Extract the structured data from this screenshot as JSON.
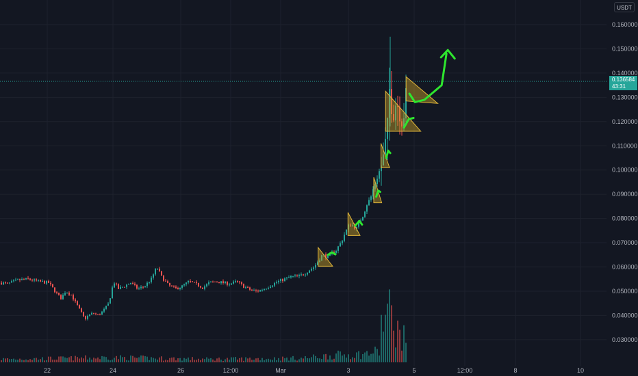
{
  "chart_data": {
    "type": "candlestick",
    "quote_unit": "USDT",
    "y_axis": {
      "range": [
        0.0195,
        0.1665
      ],
      "ticks": [
        "0.160000",
        "0.150000",
        "0.140000",
        "0.130000",
        "0.120000",
        "0.110000",
        "0.100000",
        "0.090000",
        "0.080000",
        "0.070000",
        "0.060000",
        "0.050000",
        "0.040000",
        "0.030000"
      ]
    },
    "x_axis": {
      "ticks": [
        "22",
        "24",
        "26",
        "12:00",
        "Mar",
        "3",
        "5",
        "12:00",
        "8",
        "10"
      ]
    },
    "last_price": {
      "price": "0.136584",
      "countdown": "43:31",
      "value": 0.136584
    },
    "price_path": [
      [
        0,
        0.0535
      ],
      [
        10,
        0.053
      ],
      [
        25,
        0.0545
      ],
      [
        40,
        0.055
      ],
      [
        55,
        0.054
      ],
      [
        70,
        0.0535
      ],
      [
        82,
        0.049
      ],
      [
        88,
        0.047
      ],
      [
        95,
        0.05
      ],
      [
        103,
        0.0485
      ],
      [
        112,
        0.044
      ],
      [
        118,
        0.041
      ],
      [
        123,
        0.0385
      ],
      [
        128,
        0.04
      ],
      [
        135,
        0.041
      ],
      [
        143,
        0.04
      ],
      [
        150,
        0.042
      ],
      [
        158,
        0.045
      ],
      [
        165,
        0.054
      ],
      [
        172,
        0.051
      ],
      [
        180,
        0.052
      ],
      [
        190,
        0.0535
      ],
      [
        200,
        0.051
      ],
      [
        210,
        0.052
      ],
      [
        220,
        0.055
      ],
      [
        228,
        0.06
      ],
      [
        235,
        0.056
      ],
      [
        245,
        0.0525
      ],
      [
        255,
        0.051
      ],
      [
        265,
        0.052
      ],
      [
        275,
        0.054
      ],
      [
        285,
        0.053
      ],
      [
        295,
        0.0515
      ],
      [
        305,
        0.0535
      ],
      [
        315,
        0.054
      ],
      [
        325,
        0.0535
      ],
      [
        335,
        0.053
      ],
      [
        345,
        0.054
      ],
      [
        355,
        0.052
      ],
      [
        365,
        0.0505
      ],
      [
        375,
        0.05
      ],
      [
        385,
        0.051
      ],
      [
        395,
        0.0525
      ],
      [
        405,
        0.054
      ],
      [
        415,
        0.055
      ],
      [
        425,
        0.056
      ],
      [
        435,
        0.056
      ],
      [
        445,
        0.0575
      ],
      [
        452,
        0.059
      ],
      [
        458,
        0.06
      ],
      [
        465,
        0.063
      ],
      [
        470,
        0.065
      ],
      [
        478,
        0.064
      ],
      [
        485,
        0.066
      ],
      [
        490,
        0.067
      ],
      [
        497,
        0.07
      ],
      [
        503,
        0.074
      ],
      [
        510,
        0.078
      ],
      [
        515,
        0.077
      ],
      [
        520,
        0.076
      ],
      [
        525,
        0.079
      ],
      [
        530,
        0.082
      ],
      [
        535,
        0.086
      ],
      [
        540,
        0.088
      ],
      [
        545,
        0.093
      ],
      [
        550,
        0.097
      ],
      [
        555,
        0.101
      ],
      [
        560,
        0.106
      ],
      [
        565,
        0.118
      ],
      [
        568,
        0.133
      ],
      [
        571,
        0.127
      ],
      [
        574,
        0.124
      ],
      [
        578,
        0.129
      ],
      [
        582,
        0.125
      ],
      [
        586,
        0.121
      ],
      [
        590,
        0.124
      ],
      [
        594,
        0.1365
      ]
    ],
    "volume_profile": [
      [
        0,
        0.2
      ],
      [
        100,
        0.25
      ],
      [
        160,
        0.3
      ],
      [
        300,
        0.2
      ],
      [
        440,
        0.25
      ],
      [
        490,
        0.45
      ],
      [
        530,
        0.5
      ],
      [
        555,
        0.7
      ],
      [
        566,
        1.0
      ],
      [
        572,
        0.9
      ],
      [
        580,
        0.6
      ],
      [
        594,
        0.4
      ]
    ],
    "annotations": {
      "triangles": [
        {
          "points": [
            [
              464.8,
              0.068
            ],
            [
              485.9,
              0.0603
            ],
            [
              464.8,
              0.0603
            ]
          ]
        },
        {
          "points": [
            [
              508.3,
              0.0825
            ],
            [
              525.9,
              0.073
            ],
            [
              508.3,
              0.073
            ]
          ]
        },
        {
          "points": [
            [
              546,
              0.097
            ],
            [
              557.6,
              0.0865
            ],
            [
              546,
              0.0865
            ]
          ]
        },
        {
          "points": [
            [
              556.5,
              0.111
            ],
            [
              569.1,
              0.101
            ],
            [
              556.5,
              0.101
            ]
          ]
        },
        {
          "points": [
            [
              563.3,
              0.1325
            ],
            [
              614.6,
              0.116
            ],
            [
              563.3,
              0.116
            ]
          ]
        },
        {
          "points": [
            [
              593.2,
              0.1385
            ],
            [
              639.4,
              0.1275
            ],
            [
              593.2,
              0.1285
            ]
          ]
        }
      ],
      "arrows": [
        {
          "points": [
            [
              478.9,
              0.065
            ],
            [
              484.9,
              0.066
            ],
            [
              489.9,
              0.0652
            ]
          ]
        },
        {
          "points": [
            [
              518.9,
              0.077
            ],
            [
              524.9,
              0.079
            ],
            [
              528.9,
              0.0775
            ]
          ]
        },
        {
          "points": [
            [
              549.6,
              0.089
            ],
            [
              552.5,
              0.0915
            ],
            [
              555.4,
              0.091
            ]
          ]
        },
        {
          "points": [
            [
              564.2,
              0.105
            ],
            [
              567.1,
              0.108
            ],
            [
              570.1,
              0.107
            ]
          ]
        },
        {
          "points": [
            [
              590.1,
              0.1175
            ],
            [
              597.1,
              0.121
            ],
            [
              604.1,
              0.1215
            ]
          ]
        },
        {
          "points": [
            [
              598.1,
              0.1315
            ],
            [
              606.1,
              0.128
            ],
            [
              620.1,
              0.129
            ],
            [
              645.2,
              0.135
            ],
            [
              652.2,
              0.148
            ]
          ],
          "head": [
            [
              644.2,
              0.1465
            ],
            [
              654.2,
              0.1495
            ],
            [
              664.2,
              0.146
            ]
          ]
        }
      ]
    },
    "colors": {
      "background": "#131722",
      "grid": "#1e222d",
      "up": "#26a69a",
      "down": "#ef5350",
      "axis_text": "#b2b5be",
      "price_line": "#26a69a",
      "triangle_fill": "#c9a227",
      "triangle_stroke": "#e0b63a",
      "arrow": "#2ee62e"
    }
  }
}
